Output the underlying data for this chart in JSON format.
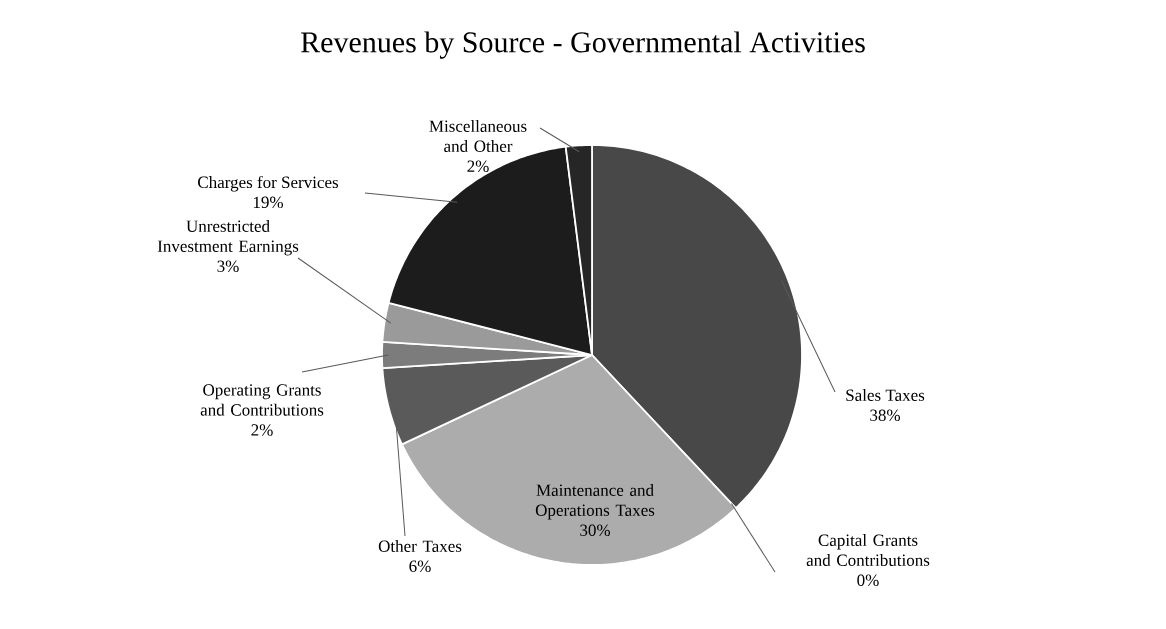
{
  "chart_data": {
    "type": "pie",
    "title": "Revenues by Source - Governmental Activities",
    "categories": [
      "Sales Taxes",
      "Capital Grants and Contributions",
      "Maintenance and Operations Taxes",
      "Other Taxes",
      "Operating Grants and Contributions",
      "Unrestricted Investment Earnings",
      "Charges for Services",
      "Miscellaneous and Other"
    ],
    "values": [
      38,
      0,
      30,
      6,
      2,
      3,
      19,
      2
    ],
    "value_labels": [
      "38%",
      "0%",
      "30%",
      "6%",
      "2%",
      "3%",
      "19%",
      "2%"
    ],
    "colors": [
      "#484848",
      "#ffffff",
      "#acacac",
      "#5a5a5a",
      "#7c7c7c",
      "#9a9a9a",
      "#1c1c1c",
      "#262626"
    ]
  }
}
